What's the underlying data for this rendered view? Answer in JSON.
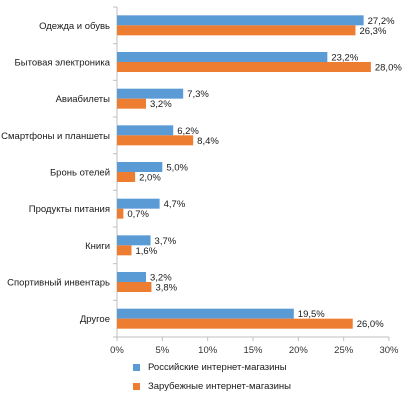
{
  "chart_data": {
    "type": "bar",
    "orientation": "horizontal",
    "categories": [
      "Одежда и обувь",
      "Бытовая электроника",
      "Авиабилеты",
      "Смартфоны и планшеты",
      "Бронь отелей",
      "Продукты питания",
      "Книги",
      "Спортивный инвентарь",
      "Другое"
    ],
    "series": [
      {
        "name": "Российские интернет-магазины",
        "color": "#5b9bd5",
        "values": [
          27.2,
          23.2,
          7.3,
          6.2,
          5.0,
          4.7,
          3.7,
          3.2,
          19.5
        ],
        "labels": [
          "27,2%",
          "23,2%",
          "7,3%",
          "6,2%",
          "5,0%",
          "4,7%",
          "3,7%",
          "3,2%",
          "19,5%"
        ]
      },
      {
        "name": "Зарубежные интернет-магазины",
        "color": "#ed7d31",
        "values": [
          26.3,
          28.0,
          3.2,
          8.4,
          2.0,
          0.7,
          1.6,
          3.8,
          26.0
        ],
        "labels": [
          "26,3%",
          "28,0%",
          "3,2%",
          "8,4%",
          "2,0%",
          "0,7%",
          "1,6%",
          "3,8%",
          "26,0%"
        ]
      }
    ],
    "xlim": [
      0,
      30
    ],
    "xticks": [
      0,
      5,
      10,
      15,
      20,
      25,
      30
    ],
    "xtick_labels": [
      "0%",
      "5%",
      "10%",
      "15%",
      "20%",
      "25%",
      "30%"
    ],
    "title": "",
    "xlabel": "",
    "ylabel": "",
    "grid": false,
    "legend_position": "bottom"
  }
}
